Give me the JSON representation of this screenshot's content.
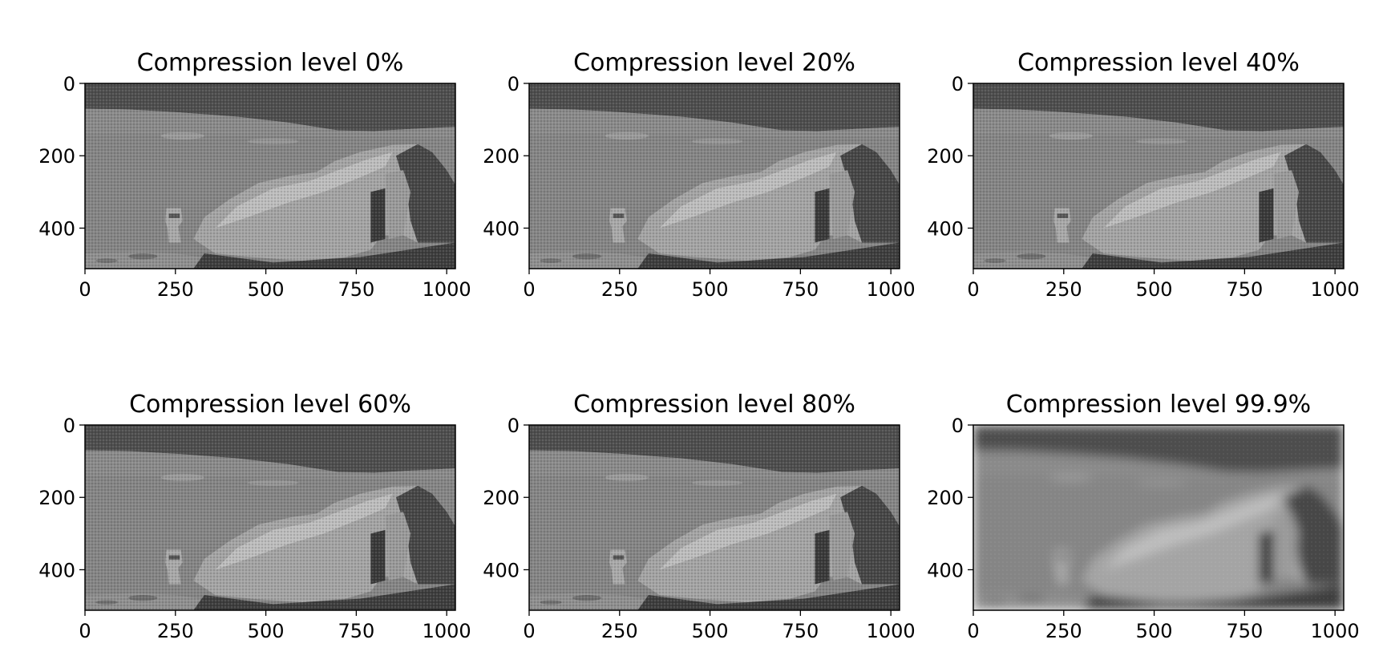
{
  "chart_data": [
    {
      "type": "image",
      "title": "Compression level 0%",
      "compression_percent": 0,
      "xlim": [
        0,
        1024
      ],
      "ylim": [
        512,
        0
      ],
      "xticks": [
        0,
        250,
        500,
        750,
        1000
      ],
      "yticks": [
        0,
        200,
        400
      ],
      "xtick_labels": [
        "0",
        "250",
        "500",
        "750",
        "1000"
      ],
      "ytick_labels": [
        "0",
        "200",
        "400"
      ]
    },
    {
      "type": "image",
      "title": "Compression level 20%",
      "compression_percent": 20,
      "xlim": [
        0,
        1024
      ],
      "ylim": [
        512,
        0
      ],
      "xticks": [
        0,
        250,
        500,
        750,
        1000
      ],
      "yticks": [
        0,
        200,
        400
      ],
      "xtick_labels": [
        "0",
        "250",
        "500",
        "750",
        "1000"
      ],
      "ytick_labels": [
        "0",
        "200",
        "400"
      ]
    },
    {
      "type": "image",
      "title": "Compression level 40%",
      "compression_percent": 40,
      "xlim": [
        0,
        1024
      ],
      "ylim": [
        512,
        0
      ],
      "xticks": [
        0,
        250,
        500,
        750,
        1000
      ],
      "yticks": [
        0,
        200,
        400
      ],
      "xtick_labels": [
        "0",
        "250",
        "500",
        "750",
        "1000"
      ],
      "ytick_labels": [
        "0",
        "200",
        "400"
      ]
    },
    {
      "type": "image",
      "title": "Compression level 60%",
      "compression_percent": 60,
      "xlim": [
        0,
        1024
      ],
      "ylim": [
        512,
        0
      ],
      "xticks": [
        0,
        250,
        500,
        750,
        1000
      ],
      "yticks": [
        0,
        200,
        400
      ],
      "xtick_labels": [
        "0",
        "250",
        "500",
        "750",
        "1000"
      ],
      "ytick_labels": [
        "0",
        "200",
        "400"
      ]
    },
    {
      "type": "image",
      "title": "Compression level 80%",
      "compression_percent": 80,
      "xlim": [
        0,
        1024
      ],
      "ylim": [
        512,
        0
      ],
      "xticks": [
        0,
        250,
        500,
        750,
        1000
      ],
      "yticks": [
        0,
        200,
        400
      ],
      "xtick_labels": [
        "0",
        "250",
        "500",
        "750",
        "1000"
      ],
      "ytick_labels": [
        "0",
        "200",
        "400"
      ]
    },
    {
      "type": "image",
      "title": "Compression level 99.9%",
      "compression_percent": 99.9,
      "xlim": [
        0,
        1024
      ],
      "ylim": [
        512,
        0
      ],
      "xticks": [
        0,
        250,
        500,
        750,
        1000
      ],
      "yticks": [
        0,
        200,
        400
      ],
      "xtick_labels": [
        "0",
        "250",
        "500",
        "750",
        "1000"
      ],
      "ytick_labels": [
        "0",
        "200",
        "400"
      ]
    }
  ]
}
